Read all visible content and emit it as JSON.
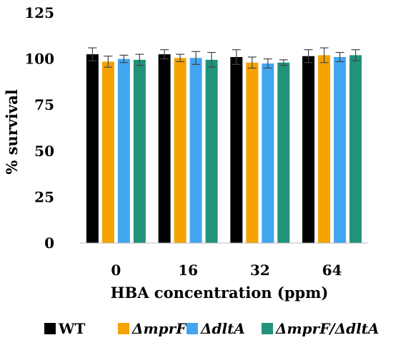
{
  "chart_data": {
    "type": "bar",
    "xlabel": "HBA concentration (ppm)",
    "ylabel": "% survival",
    "categories": [
      "0",
      "16",
      "32",
      "64"
    ],
    "ylim": [
      0,
      125
    ],
    "yticks": [
      "0",
      "25",
      "50",
      "75",
      "100",
      "125"
    ],
    "grid": false,
    "legend_position": "bottom",
    "series": [
      {
        "name": "WT",
        "color": "#000000",
        "values": [
          102.5,
          102.5,
          101,
          101.5
        ],
        "errors": [
          3.5,
          2.5,
          4,
          3.5
        ]
      },
      {
        "name": "ΔmprF",
        "color": "#f5a300",
        "values": [
          98.5,
          100.5,
          98,
          102
        ],
        "errors": [
          3,
          2,
          3,
          4
        ]
      },
      {
        "name": "ΔdltA",
        "color": "#42a5f0",
        "values": [
          100,
          100.5,
          97.5,
          101
        ],
        "errors": [
          2,
          3.5,
          2.5,
          2.5
        ]
      },
      {
        "name": "ΔmprF/ΔdltA",
        "color": "#20937a",
        "values": [
          99.5,
          99.5,
          98,
          102
        ],
        "errors": [
          3,
          4,
          1.5,
          3
        ]
      }
    ]
  }
}
